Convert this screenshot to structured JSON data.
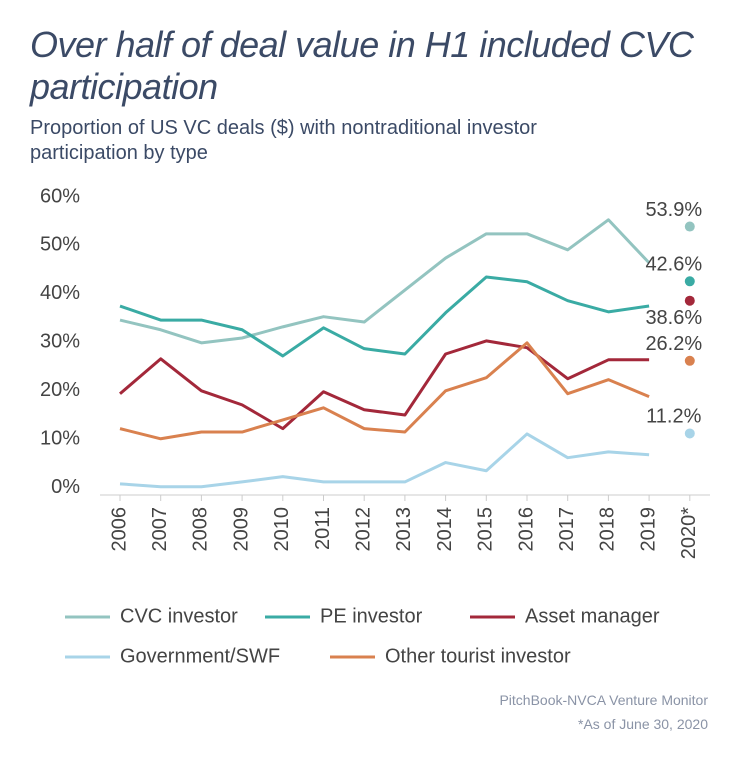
{
  "chart_data": {
    "type": "line",
    "title": "Over half of deal value in H1 included CVC participation",
    "subtitle": "Proportion of US VC deals ($) with nontraditional investor participation by type",
    "source": "PitchBook-NVCA Venture Monitor",
    "note": "*As of June 30, 2020",
    "categories": [
      "2006",
      "2007",
      "2008",
      "2009",
      "2010",
      "2011",
      "2012",
      "2013",
      "2014",
      "2015",
      "2016",
      "2017",
      "2018",
      "2019",
      "2020*"
    ],
    "ylim": [
      -1.5,
      60
    ],
    "yticks": [
      {
        "value": 0,
        "label": "0%"
      },
      {
        "value": 10,
        "label": "10%"
      },
      {
        "value": 20,
        "label": "20%"
      },
      {
        "value": 30,
        "label": "30%"
      },
      {
        "value": 40,
        "label": "40%"
      },
      {
        "value": 50,
        "label": "50%"
      },
      {
        "value": 60,
        "label": "60%"
      }
    ],
    "grid": false,
    "series": [
      {
        "name": "CVC investor",
        "color": "#93c4c0",
        "values": [
          34.6,
          32.6,
          29.9,
          30.9,
          33.2,
          35.3,
          34.2,
          40.8,
          47.4,
          52.4,
          52.4,
          49.1,
          55.3,
          46.4,
          53.9
        ],
        "value_labels": [
          null,
          null,
          null,
          null,
          null,
          null,
          null,
          null,
          null,
          null,
          null,
          null,
          null,
          null,
          "53.9%"
        ]
      },
      {
        "name": "PE investor",
        "color": "#3aaba4",
        "values": [
          37.5,
          34.6,
          34.6,
          32.6,
          27.2,
          33.0,
          28.7,
          27.6,
          36.1,
          43.5,
          42.5,
          38.6,
          36.3,
          37.5,
          42.6
        ],
        "value_labels": [
          null,
          null,
          null,
          null,
          null,
          null,
          null,
          null,
          null,
          null,
          null,
          null,
          null,
          null,
          "42.6%"
        ]
      },
      {
        "name": "Asset manager",
        "color": "#a3283a",
        "values": [
          19.4,
          26.6,
          20.0,
          17.1,
          12.2,
          19.8,
          16.1,
          15.0,
          27.6,
          30.3,
          28.9,
          22.5,
          26.4,
          26.4,
          38.6
        ],
        "value_labels": [
          null,
          null,
          null,
          null,
          null,
          null,
          null,
          null,
          null,
          null,
          null,
          null,
          null,
          null,
          "38.6%"
        ]
      },
      {
        "name": "Government/SWF",
        "color": "#a8d4e8",
        "values": [
          0.8,
          0.2,
          0.2,
          1.2,
          2.3,
          1.2,
          1.2,
          1.2,
          5.2,
          3.5,
          11.1,
          6.2,
          7.4,
          6.8,
          11.2
        ],
        "value_labels": [
          null,
          null,
          null,
          null,
          null,
          null,
          null,
          null,
          null,
          null,
          null,
          null,
          null,
          null,
          "11.2%"
        ]
      },
      {
        "name": "Other tourist investor",
        "color": "#d9814f",
        "values": [
          12.2,
          10.1,
          11.5,
          11.5,
          14.0,
          16.5,
          12.2,
          11.5,
          20.0,
          22.7,
          29.9,
          19.4,
          22.3,
          18.8,
          26.2
        ],
        "value_labels": [
          null,
          null,
          null,
          null,
          null,
          null,
          null,
          null,
          null,
          null,
          null,
          null,
          null,
          null,
          "26.2%"
        ]
      }
    ]
  }
}
